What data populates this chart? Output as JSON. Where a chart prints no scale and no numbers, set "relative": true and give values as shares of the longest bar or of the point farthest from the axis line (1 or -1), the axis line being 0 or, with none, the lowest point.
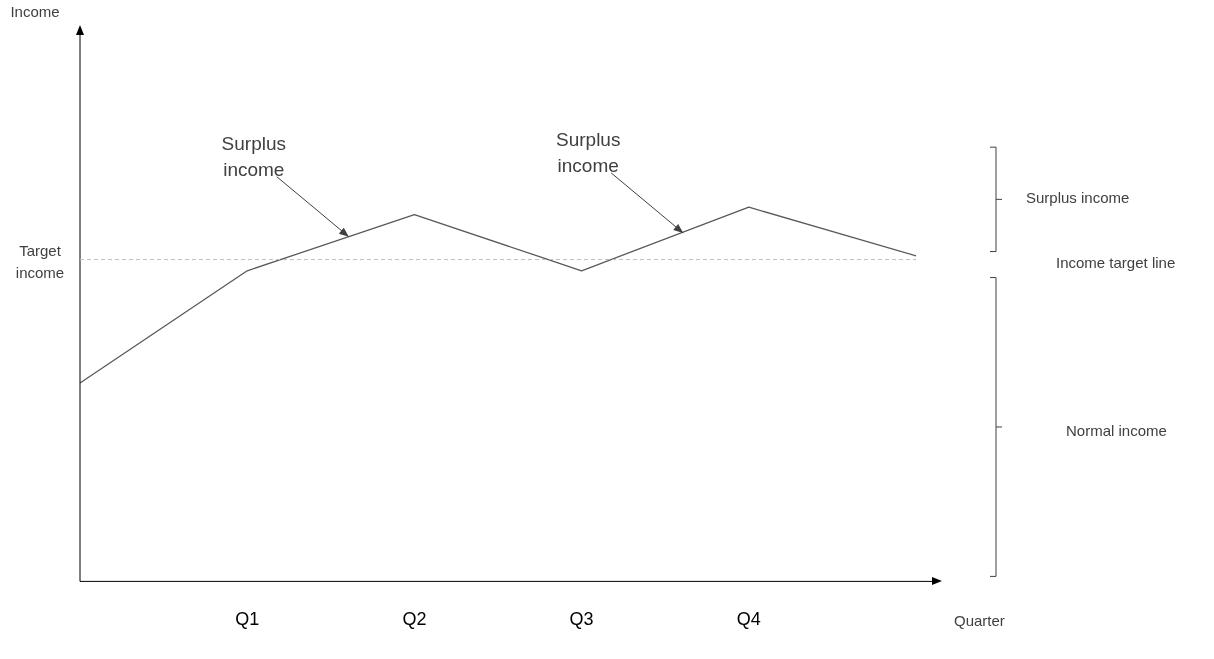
{
  "chart_data": {
    "type": "line",
    "relative": true,
    "xlabel": "Quarter",
    "categories": [
      null,
      "Q1",
      "Q2",
      "Q3",
      "Q4",
      null
    ],
    "series": [
      {
        "color": "#595959",
        "values": [
          0.53,
          0.83,
          0.98,
          0.83,
          1,
          0.87
        ]
      }
    ],
    "ref_lines": [
      {
        "axis": "y",
        "value": 0.86,
        "label": "Target income",
        "color": "#bfbfbf",
        "line_style": "dashed"
      }
    ],
    "annotations": [
      "Income target line",
      "Surplus income",
      "Surplus income",
      "Surplus income",
      "Normal income",
      "Income"
    ],
    "marker": "none",
    "line_style": "solid",
    "grid": false,
    "legend": false
  }
}
